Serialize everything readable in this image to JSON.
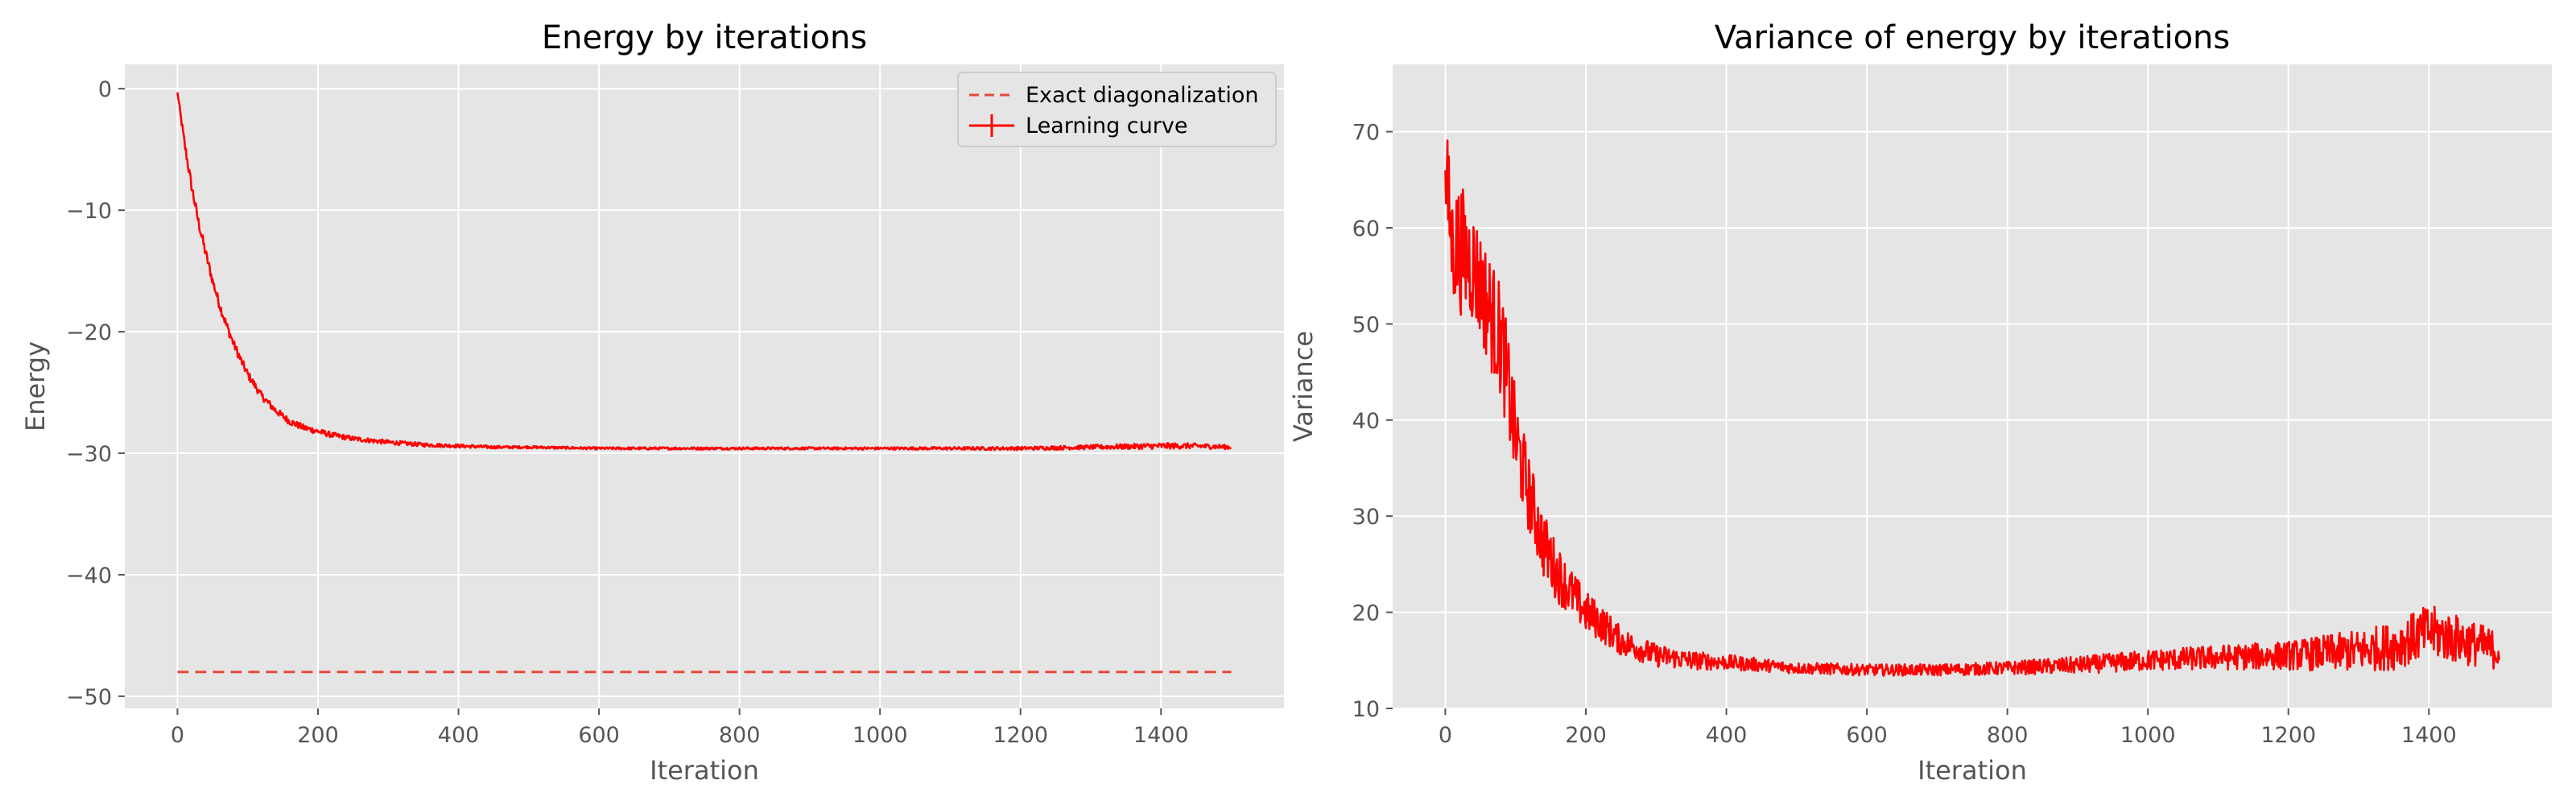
{
  "colors": {
    "plot_background": "#E5E5E5",
    "grid": "#FFFFFF",
    "series": "#FF0000",
    "exact": "#E8483C",
    "tick_text": "#555555",
    "title_text": "#000000"
  },
  "chart_data": [
    {
      "type": "line",
      "title": "Energy by iterations",
      "xlabel": "Iteration",
      "ylabel": "Energy",
      "xlim": [
        -75,
        1575
      ],
      "ylim": [
        -51,
        2
      ],
      "xticks": [
        0,
        200,
        400,
        600,
        800,
        1000,
        1200,
        1400
      ],
      "yticks": [
        0,
        -10,
        -20,
        -30,
        -40,
        -50
      ],
      "ytick_labels": [
        "0",
        "−10",
        "−20",
        "−30",
        "−40",
        "−50"
      ],
      "grid": true,
      "legend": {
        "placement": "top-right",
        "entries": [
          {
            "label": "Exact diagonalization",
            "style": "dashed"
          },
          {
            "label": "Learning curve",
            "style": "solid-errorbar"
          }
        ]
      },
      "series": [
        {
          "name": "Exact diagonalization",
          "style": "dashed",
          "x": [
            0,
            1500
          ],
          "y": [
            -48,
            -48
          ]
        },
        {
          "name": "Learning curve",
          "style": "solid",
          "x": [
            0,
            10,
            20,
            30,
            40,
            50,
            60,
            70,
            80,
            90,
            100,
            120,
            140,
            160,
            180,
            200,
            220,
            250,
            300,
            350,
            400,
            450,
            500,
            600,
            700,
            800,
            900,
            1000,
            1100,
            1200,
            1300,
            1400,
            1450,
            1500
          ],
          "y": [
            -0.3,
            -4.5,
            -8.0,
            -11.0,
            -13.5,
            -15.8,
            -17.8,
            -19.5,
            -21.0,
            -22.3,
            -23.5,
            -25.3,
            -26.5,
            -27.4,
            -27.9,
            -28.2,
            -28.5,
            -28.8,
            -29.1,
            -29.3,
            -29.4,
            -29.5,
            -29.5,
            -29.6,
            -29.6,
            -29.6,
            -29.6,
            -29.6,
            -29.6,
            -29.6,
            -29.5,
            -29.4,
            -29.4,
            -29.5
          ],
          "noise_amplitude": [
            0.1,
            0.45,
            0.45,
            0.45,
            0.45,
            0.4,
            0.4,
            0.4,
            0.35,
            0.35,
            0.35,
            0.3,
            0.3,
            0.28,
            0.26,
            0.25,
            0.22,
            0.2,
            0.18,
            0.16,
            0.14,
            0.12,
            0.1,
            0.1,
            0.1,
            0.1,
            0.1,
            0.1,
            0.12,
            0.14,
            0.18,
            0.25,
            0.22,
            0.18
          ]
        }
      ]
    },
    {
      "type": "line",
      "title": "Variance of energy by iterations",
      "xlabel": "Iteration",
      "ylabel": "Variance",
      "xlim": [
        -75,
        1575
      ],
      "ylim": [
        10,
        77
      ],
      "xticks": [
        0,
        200,
        400,
        600,
        800,
        1000,
        1200,
        1400
      ],
      "yticks": [
        10,
        20,
        30,
        40,
        50,
        60,
        70
      ],
      "ytick_labels": [
        "10",
        "20",
        "30",
        "40",
        "50",
        "60",
        "70"
      ],
      "grid": true,
      "series": [
        {
          "name": "",
          "style": "solid",
          "x": [
            0,
            10,
            20,
            40,
            60,
            80,
            100,
            120,
            140,
            160,
            180,
            200,
            220,
            250,
            300,
            350,
            400,
            450,
            500,
            600,
            700,
            800,
            900,
            1000,
            1100,
            1200,
            1300,
            1350,
            1400,
            1450,
            1500
          ],
          "y": [
            66,
            58,
            58,
            56,
            52,
            48,
            38,
            32,
            27,
            24,
            22,
            20,
            19,
            17,
            15.5,
            15,
            14.8,
            14.5,
            14.2,
            14.0,
            14.0,
            14.2,
            14.5,
            15.0,
            15.3,
            15.5,
            16.0,
            16.5,
            18.0,
            17.0,
            16.0
          ],
          "noise_amplitude": [
            6,
            6,
            7,
            6,
            6,
            6,
            5,
            4,
            3.5,
            3,
            2.5,
            2.2,
            2,
            1.5,
            1.2,
            1,
            0.8,
            0.7,
            0.6,
            0.6,
            0.6,
            0.7,
            0.9,
            1.1,
            1.3,
            1.5,
            2.2,
            2.5,
            2.8,
            2.5,
            2
          ]
        }
      ]
    }
  ]
}
